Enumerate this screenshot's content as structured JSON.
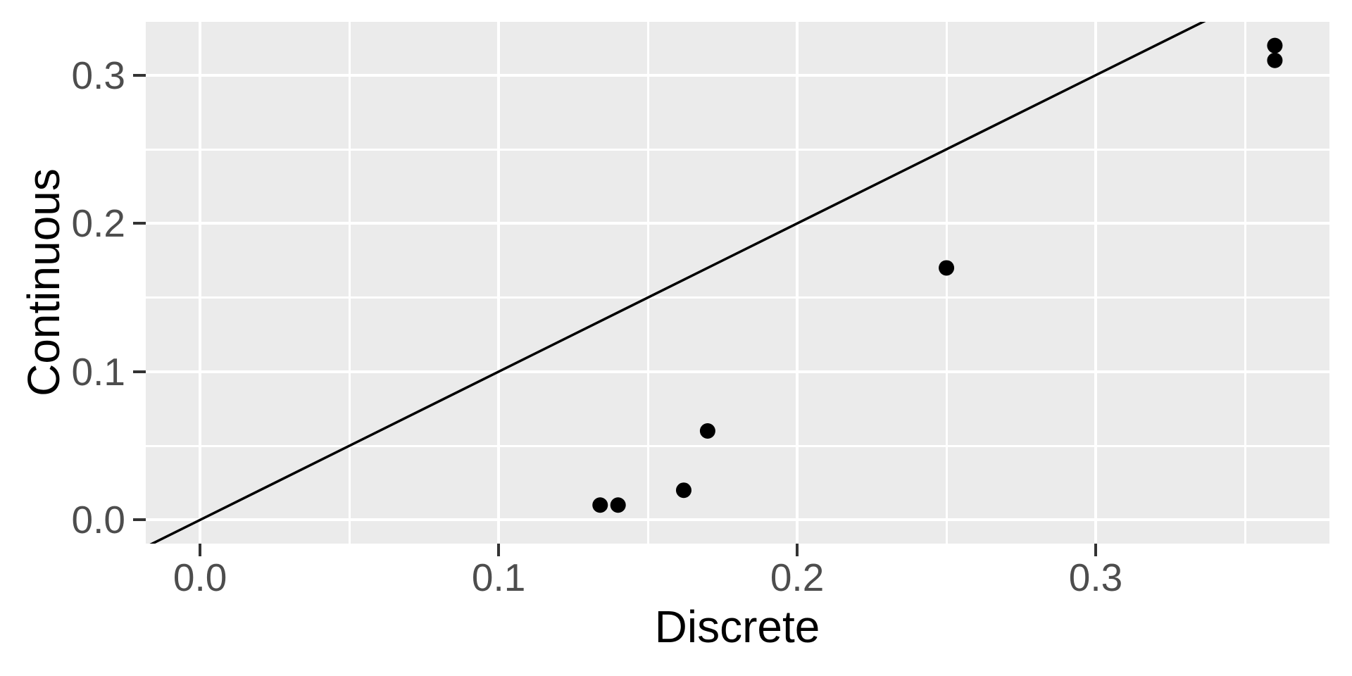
{
  "chart_data": {
    "type": "scatter",
    "title": "",
    "xlabel": "Discrete",
    "ylabel": "Continuous",
    "points": [
      {
        "x": 0.134,
        "y": 0.01
      },
      {
        "x": 0.14,
        "y": 0.01
      },
      {
        "x": 0.162,
        "y": 0.02
      },
      {
        "x": 0.17,
        "y": 0.06
      },
      {
        "x": 0.25,
        "y": 0.17
      },
      {
        "x": 0.36,
        "y": 0.31
      },
      {
        "x": 0.36,
        "y": 0.32
      }
    ],
    "reference_line": {
      "slope": 1,
      "intercept": 0,
      "description": "identity line y = x"
    },
    "x_axis": {
      "range": [
        -0.0182,
        0.3783
      ],
      "ticks": [
        {
          "value": 0.0,
          "label": "0.0"
        },
        {
          "value": 0.1,
          "label": "0.1"
        },
        {
          "value": 0.2,
          "label": "0.2"
        },
        {
          "value": 0.3,
          "label": "0.3"
        }
      ],
      "minor_ticks": [
        0.05,
        0.15,
        0.25,
        0.35
      ]
    },
    "y_axis": {
      "range": [
        -0.016,
        0.336
      ],
      "ticks": [
        {
          "value": 0.0,
          "label": "0.0"
        },
        {
          "value": 0.1,
          "label": "0.1"
        },
        {
          "value": 0.2,
          "label": "0.2"
        },
        {
          "value": 0.3,
          "label": "0.3"
        }
      ],
      "minor_ticks": [
        0.05,
        0.15,
        0.25,
        0.35
      ]
    },
    "legend": "none",
    "grid": "on",
    "style": {
      "panel_background": "#EBEBEB",
      "grid_color": "#FFFFFF",
      "point_color": "#000000",
      "point_radius_px": 11,
      "line_color": "#000000",
      "tick_label_color": "#4D4D4D",
      "tick_mark_color": "#333333",
      "axis_title_color": "#000000",
      "figure_background": "#FFFFFF"
    }
  }
}
